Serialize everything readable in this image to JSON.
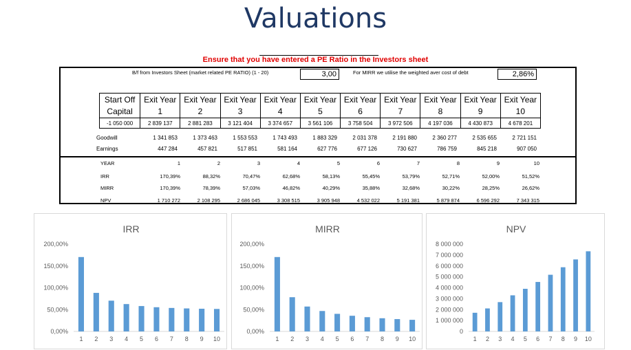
{
  "page": {
    "title": "Valuations",
    "warning": "Ensure that you have entered a PE Ratio in the Investors sheet"
  },
  "inputs": {
    "pe_label": "B/f from Investors Sheet (market related PE RATIO) (1 - 20)",
    "pe_value": "3,00",
    "mirr_label": "For MIRR we utilise the weighted aver cost of debt",
    "mirr_value": "2,86%"
  },
  "table": {
    "headers": [
      [
        "Start Off",
        "Capital"
      ],
      [
        "Exit Year",
        "1"
      ],
      [
        "Exit Year",
        "2"
      ],
      [
        "Exit Year",
        "3"
      ],
      [
        "Exit Year",
        "4"
      ],
      [
        "Exit Year",
        "5"
      ],
      [
        "Exit Year",
        "6"
      ],
      [
        "Exit Year",
        "7"
      ],
      [
        "Exit Year",
        "8"
      ],
      [
        "Exit Year",
        "9"
      ],
      [
        "Exit Year",
        "10"
      ]
    ],
    "capital_row": [
      "-1 050 000",
      "2 839 137",
      "2 881 283",
      "3 121 404",
      "3 374 657",
      "3 561 106",
      "3 758 504",
      "3 972 506",
      "4 197 036",
      "4 430 873",
      "4 678 201"
    ],
    "goodwill": {
      "label": "Goodwill",
      "values": [
        "1 341 853",
        "1 373 463",
        "1 553 553",
        "1 743 493",
        "1 883 329",
        "2 031 378",
        "2 191 880",
        "2 360 277",
        "2 535 655",
        "2 721 151"
      ]
    },
    "earnings": {
      "label": "Earnings",
      "values": [
        "447 284",
        "457 821",
        "517 851",
        "581 164",
        "627 776",
        "677 126",
        "730 627",
        "786 759",
        "845 218",
        "907 050"
      ]
    }
  },
  "summary": {
    "year": {
      "label": "YEAR",
      "values": [
        "1",
        "2",
        "3",
        "4",
        "5",
        "6",
        "7",
        "8",
        "9",
        "10"
      ]
    },
    "irr": {
      "label": "IRR",
      "values": [
        "170,39%",
        "88,32%",
        "70,47%",
        "62,68%",
        "58,13%",
        "55,45%",
        "53,79%",
        "52,71%",
        "52,00%",
        "51,52%"
      ]
    },
    "mirr": {
      "label": "MIRR",
      "values": [
        "170,39%",
        "78,39%",
        "57,03%",
        "46,82%",
        "40,29%",
        "35,88%",
        "32,68%",
        "30,22%",
        "28,25%",
        "26,62%"
      ]
    },
    "npv": {
      "label": "NPV",
      "values": [
        "1 710 272",
        "2 108 295",
        "2 686 045",
        "3 308 515",
        "3 905 948",
        "4 532 022",
        "5 191 381",
        "5 879 874",
        "6 596 292",
        "7 343 315"
      ]
    }
  },
  "chart_data": [
    {
      "type": "bar",
      "title": "IRR",
      "categories": [
        "1",
        "2",
        "3",
        "4",
        "5",
        "6",
        "7",
        "8",
        "9",
        "10"
      ],
      "values": [
        170.39,
        88.32,
        70.47,
        62.68,
        58.13,
        55.45,
        53.79,
        52.71,
        52.0,
        51.52
      ],
      "ylim": [
        0,
        200
      ],
      "yticks": [
        0,
        50,
        100,
        150,
        200
      ],
      "ytick_labels": [
        "0,00%",
        "50,00%",
        "100,00%",
        "150,00%",
        "200,00%"
      ],
      "bar_color": "#5b9bd5",
      "grid": false
    },
    {
      "type": "bar",
      "title": "MIRR",
      "categories": [
        "1",
        "2",
        "3",
        "4",
        "5",
        "6",
        "7",
        "8",
        "9",
        "10"
      ],
      "values": [
        170.39,
        78.39,
        57.03,
        46.82,
        40.29,
        35.88,
        32.68,
        30.22,
        28.25,
        26.62
      ],
      "ylim": [
        0,
        200
      ],
      "yticks": [
        0,
        50,
        100,
        150,
        200
      ],
      "ytick_labels": [
        "0,00%",
        "50,00%",
        "100,00%",
        "150,00%",
        "200,00%"
      ],
      "bar_color": "#5b9bd5",
      "grid": false
    },
    {
      "type": "bar",
      "title": "NPV",
      "categories": [
        "1",
        "2",
        "3",
        "4",
        "5",
        "6",
        "7",
        "8",
        "9",
        "10"
      ],
      "values": [
        1710272,
        2108295,
        2686045,
        3308515,
        3905948,
        4532022,
        5191381,
        5879874,
        6596292,
        7343315
      ],
      "ylim": [
        0,
        8000000
      ],
      "yticks": [
        0,
        1000000,
        2000000,
        3000000,
        4000000,
        5000000,
        6000000,
        7000000,
        8000000
      ],
      "ytick_labels": [
        "0",
        "1 000 000",
        "2 000 000",
        "3 000 000",
        "4 000 000",
        "5 000 000",
        "6 000 000",
        "7 000 000",
        "8 000 000"
      ],
      "bar_color": "#5b9bd5",
      "grid": false
    }
  ]
}
